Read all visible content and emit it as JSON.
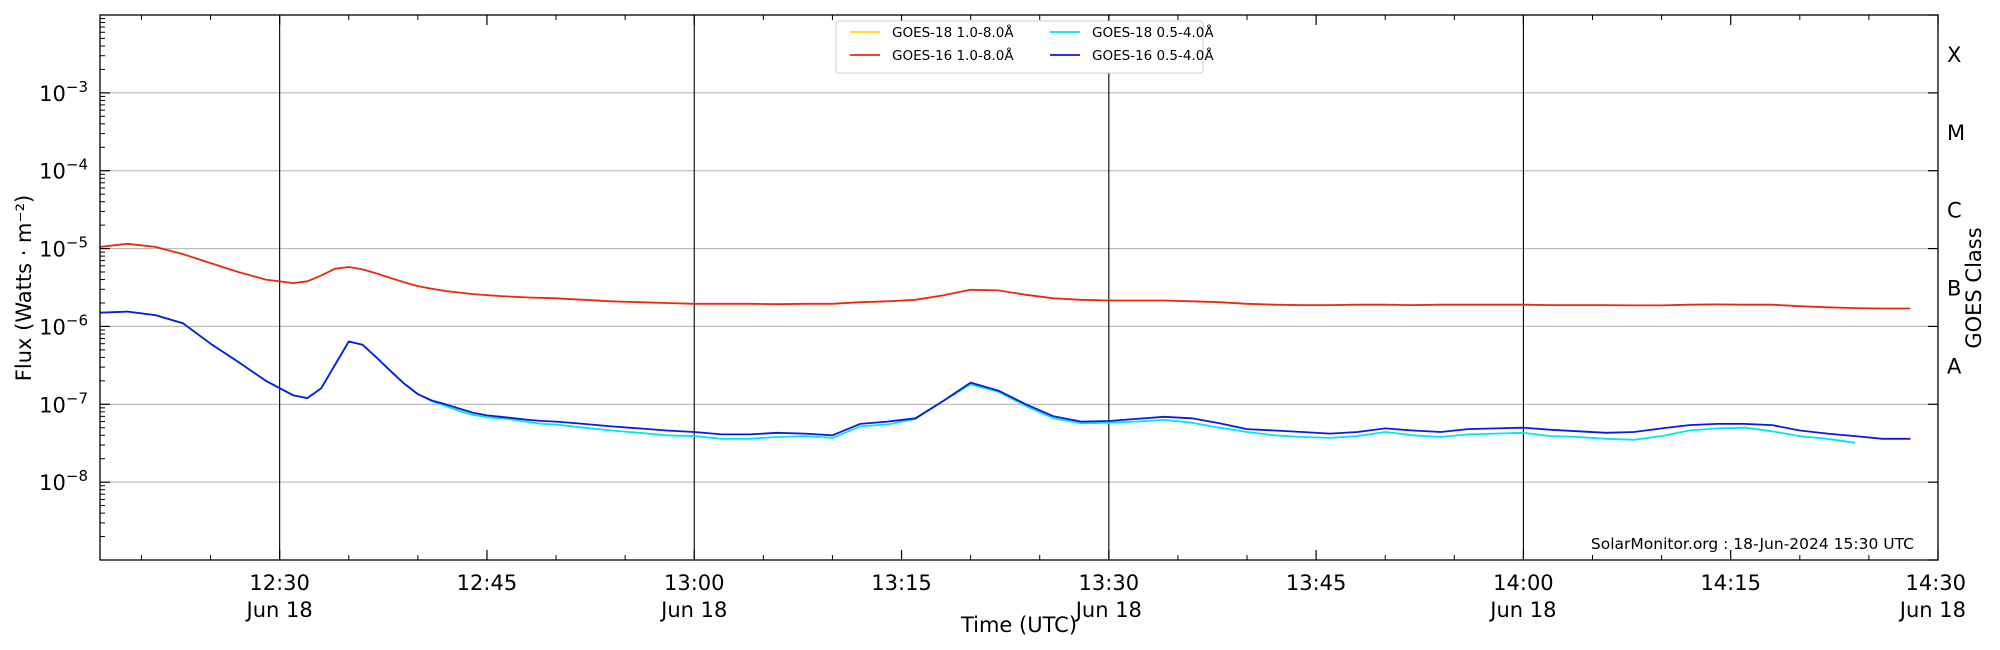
{
  "chart_data": {
    "type": "line",
    "xlabel": "Time (UTC)",
    "ylabel": "Flux (Watts · m⁻²)",
    "right_axis_label": "GOES Class",
    "credit": "SolarMonitor.org : 18-Jun-2024 15:30 UTC",
    "y_scale": "log",
    "ylim": [
      1e-09,
      0.01
    ],
    "xlim_minutes_after_noon": [
      17,
      150
    ],
    "grid": "horizontal",
    "legend_position": "top-center",
    "y_ticks": [
      {
        "value": 1e-08,
        "base": "10",
        "exp": "−8"
      },
      {
        "value": 1e-07,
        "base": "10",
        "exp": "−7"
      },
      {
        "value": 1e-06,
        "base": "10",
        "exp": "−6"
      },
      {
        "value": 1e-05,
        "base": "10",
        "exp": "−5"
      },
      {
        "value": 0.0001,
        "base": "10",
        "exp": "−4"
      },
      {
        "value": 0.001,
        "base": "10",
        "exp": "−3"
      }
    ],
    "x_ticks": [
      {
        "t": 30,
        "line1": "12:30",
        "line2": "Jun 18",
        "vline": true
      },
      {
        "t": 45,
        "line1": "12:45",
        "line2": "",
        "vline": false
      },
      {
        "t": 60,
        "line1": "13:00",
        "line2": "Jun 18",
        "vline": true
      },
      {
        "t": 75,
        "line1": "13:15",
        "line2": "",
        "vline": false
      },
      {
        "t": 90,
        "line1": "13:30",
        "line2": "Jun 18",
        "vline": true
      },
      {
        "t": 105,
        "line1": "13:45",
        "line2": "",
        "vline": false
      },
      {
        "t": 120,
        "line1": "14:00",
        "line2": "Jun 18",
        "vline": true
      },
      {
        "t": 135,
        "line1": "14:15",
        "line2": "",
        "vline": false
      },
      {
        "t": 150,
        "line1": "14:30",
        "line2": "Jun 18",
        "vline": false
      }
    ],
    "goes_classes": [
      {
        "label": "A",
        "value": 1e-07
      },
      {
        "label": "B",
        "value": 1e-06
      },
      {
        "label": "C",
        "value": 1e-05
      },
      {
        "label": "M",
        "value": 0.0001
      },
      {
        "label": "X",
        "value": 0.001
      }
    ],
    "series": [
      {
        "name": "GOES-18 1.0-8.0Å",
        "color": "#ffd400",
        "x": [],
        "y": []
      },
      {
        "name": "GOES-18 0.5-4.0Å",
        "color": "#00e5ee",
        "x": [
          17,
          19,
          21,
          23,
          25,
          27,
          29,
          31,
          32,
          33,
          34,
          35,
          36,
          37,
          38,
          39,
          40,
          41,
          42,
          43,
          44,
          45,
          46,
          47,
          48,
          49,
          50,
          52,
          54,
          56,
          58,
          60,
          62,
          64,
          66,
          68,
          70,
          72,
          74,
          76,
          78,
          80,
          82,
          84,
          86,
          88,
          90,
          92,
          94,
          96,
          98,
          100,
          102,
          104,
          106,
          108,
          110,
          112,
          114,
          116,
          118,
          120,
          122,
          124,
          126,
          128,
          130,
          132,
          134,
          136,
          138,
          140,
          142,
          144
        ],
        "y": [
          1.5e-06,
          1.55e-06,
          1.4e-06,
          1.1e-06,
          6e-07,
          3.5e-07,
          2e-07,
          1.3e-07,
          1.2e-07,
          1.6e-07,
          3.2e-07,
          6.4e-07,
          5.8e-07,
          4e-07,
          2.7e-07,
          1.85e-07,
          1.35e-07,
          1.1e-07,
          9.5e-08,
          8.2e-08,
          7.3e-08,
          6.8e-08,
          6.6e-08,
          6.3e-08,
          5.9e-08,
          5.6e-08,
          5.5e-08,
          5e-08,
          4.6e-08,
          4.3e-08,
          4e-08,
          3.9e-08,
          3.6e-08,
          3.6e-08,
          3.8e-08,
          3.9e-08,
          3.7e-08,
          5.2e-08,
          5.5e-08,
          6.5e-08,
          1.1e-07,
          1.8e-07,
          1.45e-07,
          9.5e-08,
          6.6e-08,
          5.7e-08,
          5.8e-08,
          6e-08,
          6.3e-08,
          5.8e-08,
          5e-08,
          4.4e-08,
          4e-08,
          3.8e-08,
          3.7e-08,
          3.9e-08,
          4.4e-08,
          4e-08,
          3.8e-08,
          4.1e-08,
          4.2e-08,
          4.3e-08,
          3.9e-08,
          3.8e-08,
          3.6e-08,
          3.5e-08,
          3.9e-08,
          4.6e-08,
          4.9e-08,
          5e-08,
          4.5e-08,
          3.9e-08,
          3.6e-08,
          3.2e-08
        ]
      },
      {
        "name": "GOES-16 1.0-8.0Å",
        "color": "#e8290b",
        "x": [
          17,
          19,
          21,
          23,
          25,
          27,
          29,
          31,
          32,
          33,
          34,
          35,
          36,
          37,
          38,
          39,
          40,
          41,
          42,
          44,
          46,
          48,
          50,
          52,
          54,
          56,
          58,
          60,
          62,
          64,
          66,
          68,
          70,
          72,
          74,
          76,
          78,
          80,
          82,
          84,
          86,
          88,
          90,
          92,
          94,
          96,
          98,
          100,
          102,
          104,
          106,
          108,
          110,
          112,
          114,
          116,
          118,
          120,
          122,
          124,
          126,
          128,
          130,
          132,
          134,
          136,
          138,
          140,
          142,
          144,
          146,
          148
        ],
        "y": [
          1.05e-05,
          1.15e-05,
          1.05e-05,
          8.5e-06,
          6.5e-06,
          5e-06,
          4e-06,
          3.6e-06,
          3.8e-06,
          4.5e-06,
          5.5e-06,
          5.8e-06,
          5.4e-06,
          4.8e-06,
          4.2e-06,
          3.7e-06,
          3.3e-06,
          3.05e-06,
          2.85e-06,
          2.6e-06,
          2.45e-06,
          2.35e-06,
          2.3e-06,
          2.2e-06,
          2.1e-06,
          2.05e-06,
          2e-06,
          1.95e-06,
          1.95e-06,
          1.95e-06,
          1.93e-06,
          1.95e-06,
          1.95e-06,
          2.05e-06,
          2.1e-06,
          2.2e-06,
          2.5e-06,
          2.95e-06,
          2.9e-06,
          2.55e-06,
          2.3e-06,
          2.2e-06,
          2.15e-06,
          2.15e-06,
          2.15e-06,
          2.1e-06,
          2.05e-06,
          1.95e-06,
          1.9e-06,
          1.88e-06,
          1.88e-06,
          1.9e-06,
          1.9e-06,
          1.88e-06,
          1.9e-06,
          1.9e-06,
          1.9e-06,
          1.9e-06,
          1.88e-06,
          1.88e-06,
          1.88e-06,
          1.86e-06,
          1.86e-06,
          1.9e-06,
          1.92e-06,
          1.9e-06,
          1.9e-06,
          1.82e-06,
          1.76e-06,
          1.72e-06,
          1.7e-06,
          1.7e-06
        ]
      },
      {
        "name": "GOES-16 0.5-4.0Å",
        "color": "#0b1ae0",
        "x": [
          17,
          19,
          21,
          23,
          25,
          27,
          29,
          31,
          32,
          33,
          34,
          35,
          36,
          37,
          38,
          39,
          40,
          41,
          42,
          43,
          44,
          45,
          46,
          47,
          48,
          49,
          50,
          52,
          54,
          56,
          58,
          60,
          62,
          64,
          66,
          68,
          70,
          72,
          74,
          76,
          78,
          80,
          82,
          84,
          86,
          88,
          90,
          92,
          94,
          96,
          98,
          100,
          102,
          104,
          106,
          108,
          110,
          112,
          114,
          116,
          118,
          120,
          122,
          124,
          126,
          128,
          130,
          132,
          134,
          136,
          138,
          140,
          142,
          144,
          146,
          148
        ],
        "y": [
          1.5e-06,
          1.55e-06,
          1.4e-06,
          1.1e-06,
          6e-07,
          3.5e-07,
          2e-07,
          1.3e-07,
          1.2e-07,
          1.6e-07,
          3.2e-07,
          6.4e-07,
          5.8e-07,
          4e-07,
          2.7e-07,
          1.85e-07,
          1.35e-07,
          1.12e-07,
          1e-07,
          8.8e-08,
          7.8e-08,
          7.2e-08,
          6.9e-08,
          6.6e-08,
          6.3e-08,
          6.1e-08,
          6e-08,
          5.6e-08,
          5.2e-08,
          4.9e-08,
          4.6e-08,
          4.4e-08,
          4.1e-08,
          4.1e-08,
          4.3e-08,
          4.2e-08,
          4e-08,
          5.6e-08,
          6e-08,
          6.6e-08,
          1.1e-07,
          1.9e-07,
          1.5e-07,
          1e-07,
          7e-08,
          6e-08,
          6.1e-08,
          6.5e-08,
          6.9e-08,
          6.6e-08,
          5.7e-08,
          4.8e-08,
          4.6e-08,
          4.4e-08,
          4.2e-08,
          4.4e-08,
          4.9e-08,
          4.6e-08,
          4.4e-08,
          4.8e-08,
          4.9e-08,
          5e-08,
          4.7e-08,
          4.5e-08,
          4.3e-08,
          4.4e-08,
          4.9e-08,
          5.4e-08,
          5.6e-08,
          5.6e-08,
          5.4e-08,
          4.6e-08,
          4.2e-08,
          3.9e-08,
          3.6e-08,
          3.6e-08
        ]
      }
    ]
  }
}
